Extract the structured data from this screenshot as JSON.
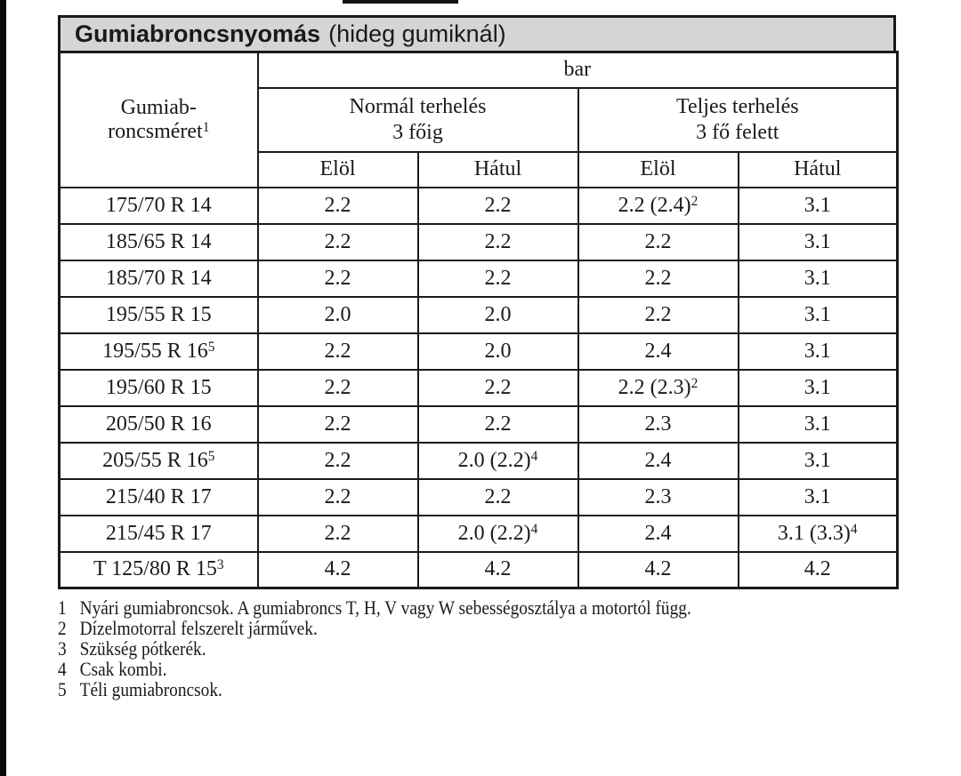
{
  "document_title": "Gumiabroncsnyomás (hideg gumiknál)",
  "title": {
    "main": "Gumiabroncsnyomás",
    "sub": "(hideg gumiknál)"
  },
  "table": {
    "unit_header": "bar",
    "size_header": "Gumiab-\nroncsméret^1",
    "groups": [
      {
        "line1": "Normál terhelés",
        "line2": "3 főig"
      },
      {
        "line1": "Teljes terhelés",
        "line2": "3 fő felett"
      }
    ],
    "subheaders": [
      "Elöl",
      "Hátul",
      "Elöl",
      "Hátul"
    ],
    "rows": [
      {
        "size": "175/70 R 14",
        "values": [
          "2.2",
          "2.2",
          "2.2 (2.4)^2",
          "3.1"
        ]
      },
      {
        "size": "185/65 R 14",
        "values": [
          "2.2",
          "2.2",
          "2.2",
          "3.1"
        ]
      },
      {
        "size": "185/70 R 14",
        "values": [
          "2.2",
          "2.2",
          "2.2",
          "3.1"
        ]
      },
      {
        "size": "195/55 R 15",
        "values": [
          "2.0",
          "2.0",
          "2.2",
          "3.1"
        ]
      },
      {
        "size": "195/55 R 16^5",
        "values": [
          "2.2",
          "2.0",
          "2.4",
          "3.1"
        ]
      },
      {
        "size": "195/60 R 15",
        "values": [
          "2.2",
          "2.2",
          "2.2 (2.3)^2",
          "3.1"
        ]
      },
      {
        "size": "205/50 R 16",
        "values": [
          "2.2",
          "2.2",
          "2.3",
          "3.1"
        ]
      },
      {
        "size": "205/55 R 16^5",
        "values": [
          "2.2",
          "2.0 (2.2)^4",
          "2.4",
          "3.1"
        ]
      },
      {
        "size": "215/40 R 17",
        "values": [
          "2.2",
          "2.2",
          "2.3",
          "3.1"
        ]
      },
      {
        "size": "215/45 R 17",
        "values": [
          "2.2",
          "2.0 (2.2)^4",
          "2.4",
          "3.1 (3.3)^4"
        ]
      },
      {
        "size": "T 125/80 R 15^3",
        "values": [
          "4.2",
          "4.2",
          "4.2",
          "4.2"
        ]
      }
    ]
  },
  "footnotes": [
    {
      "num": "1",
      "text": "Nyári gumiabroncsok. A gumiabroncs T, H, V vagy W sebességosztálya a motortól függ."
    },
    {
      "num": "2",
      "text": "Dízelmotorral felszerelt járművek."
    },
    {
      "num": "3",
      "text": "Szükség pótkerék."
    },
    {
      "num": "4",
      "text": "Csak kombi."
    },
    {
      "num": "5",
      "text": "Téli gumiabroncsok."
    }
  ],
  "colors": {
    "page_bg": "#ffffff",
    "title_bar_bg": "#d5d5d5",
    "border": "#1a1a1a",
    "text": "#1a1a1a",
    "scan_edge": "#0a0a0a"
  }
}
